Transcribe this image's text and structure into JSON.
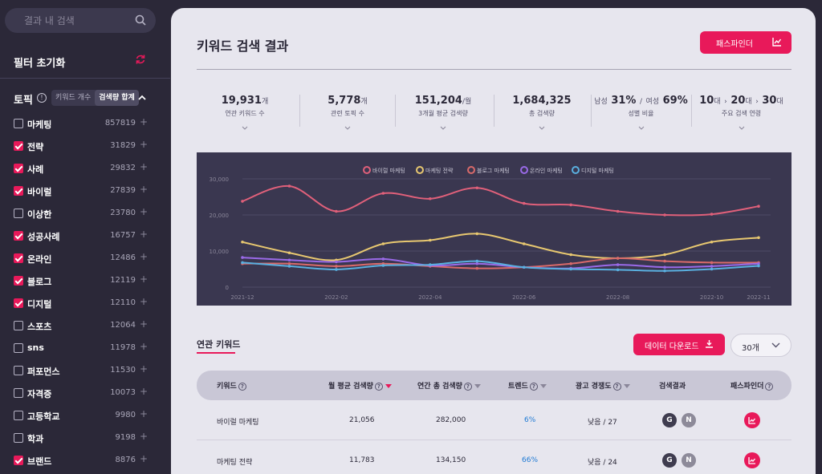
{
  "search": {
    "placeholder": "결과 내 검색"
  },
  "sidebar": {
    "filter_reset": "필터 초기화",
    "topic_label": "토픽",
    "segment": [
      "키워드 개수",
      "검색량 합계"
    ],
    "topics": [
      {
        "name": "마케팅",
        "count": "857819",
        "checked": false
      },
      {
        "name": "전략",
        "count": "31829",
        "checked": true
      },
      {
        "name": "사례",
        "count": "29832",
        "checked": true
      },
      {
        "name": "바이럴",
        "count": "27839",
        "checked": true
      },
      {
        "name": "이상한",
        "count": "23780",
        "checked": false
      },
      {
        "name": "성공사례",
        "count": "16757",
        "checked": true
      },
      {
        "name": "온라인",
        "count": "12486",
        "checked": true
      },
      {
        "name": "블로그",
        "count": "12119",
        "checked": true
      },
      {
        "name": "디지털",
        "count": "12110",
        "checked": true
      },
      {
        "name": "스포츠",
        "count": "12064",
        "checked": false
      },
      {
        "name": "sns",
        "count": "11978",
        "checked": false
      },
      {
        "name": "퍼포먼스",
        "count": "11530",
        "checked": false
      },
      {
        "name": "자격증",
        "count": "10073",
        "checked": false
      },
      {
        "name": "고등학교",
        "count": "9980",
        "checked": false
      },
      {
        "name": "학과",
        "count": "9198",
        "checked": false
      },
      {
        "name": "브랜드",
        "count": "8876",
        "checked": true
      }
    ]
  },
  "header": {
    "title": "키워드 검색 결과",
    "pathfinder_label": "패스파인더"
  },
  "stats": {
    "s1": {
      "value": "19,931",
      "unit": "개",
      "label": "연관 키워드 수"
    },
    "s2": {
      "value": "5,778",
      "unit": "개",
      "label": "관련 토픽 수"
    },
    "s3": {
      "value": "151,204",
      "unit": "/월",
      "label": "3개월 평균 검색량"
    },
    "s4": {
      "value": "1,684,325",
      "label": "총 검색량"
    },
    "gender": {
      "male_label": "남성",
      "male": "31%",
      "sep": "/",
      "female_label": "여성",
      "female": "69%",
      "label": "성별 비율"
    },
    "age": {
      "a1": "10",
      "a2": "20",
      "a3": "30",
      "unit": "대",
      "label": "주요 검색 연령"
    }
  },
  "chart_data": {
    "type": "line",
    "x": [
      "2021-12",
      "2022-01",
      "2022-02",
      "2022-03",
      "2022-04",
      "2022-05",
      "2022-06",
      "2022-07",
      "2022-08",
      "2022-09",
      "2022-10",
      "2022-11"
    ],
    "xticks": [
      "2021-12",
      "2022-02",
      "2022-04",
      "2022-06",
      "2022-08",
      "2022-10",
      "2022-11"
    ],
    "yticks": [
      "0",
      "10,000",
      "20,000",
      "30,000"
    ],
    "ylim": [
      0,
      30000
    ],
    "legend_position": "top-center",
    "series": [
      {
        "name": "바이럴 마케팅",
        "color": "#e0607a",
        "values": [
          23800,
          28000,
          21000,
          26000,
          24500,
          27500,
          23200,
          22800,
          21000,
          20000,
          20200,
          22400
        ]
      },
      {
        "name": "마케팅 전략",
        "color": "#e8c870",
        "values": [
          12500,
          9500,
          7500,
          12000,
          13000,
          14800,
          12000,
          9000,
          8000,
          9000,
          12500,
          13700
        ]
      },
      {
        "name": "블로그 마케팅",
        "color": "#d96a6a",
        "values": [
          6500,
          6500,
          5800,
          6500,
          5800,
          5200,
          5500,
          6500,
          8000,
          7200,
          6800,
          6800
        ]
      },
      {
        "name": "온라인 마케팅",
        "color": "#9a6ae8",
        "values": [
          8200,
          7500,
          7000,
          7800,
          6000,
          6500,
          5500,
          5200,
          6200,
          5500,
          5800,
          6500
        ]
      },
      {
        "name": "디지털 마케팅",
        "color": "#5ab0e0",
        "values": [
          6800,
          5800,
          4900,
          6000,
          6200,
          7200,
          5500,
          5000,
          4800,
          4500,
          5000,
          5900
        ]
      }
    ]
  },
  "tabs": {
    "related": "연관 키워드"
  },
  "download_label": "데이터 다운로드",
  "select": {
    "value": "30개"
  },
  "table": {
    "headers": {
      "keyword": "키워드",
      "monthly": "월 평균 검색량",
      "yearly": "연간 총 검색량",
      "trend": "트렌드",
      "comp": "광고 경쟁도",
      "result": "검색결과",
      "pf": "패스파인더"
    },
    "rows": [
      {
        "keyword": "바이럴 마케팅",
        "monthly": "21,056",
        "yearly": "282,000",
        "trend": "6%",
        "comp": "낮음 / 27",
        "g": "G",
        "n": "N"
      },
      {
        "keyword": "마케팅 전략",
        "monthly": "11,783",
        "yearly": "134,150",
        "trend": "66%",
        "comp": "낮음 / 24",
        "g": "G",
        "n": "N"
      }
    ]
  },
  "icons": [
    "search-icon",
    "refresh-icon",
    "info-icon",
    "chevron-up-icon",
    "plus-icon",
    "chart-icon",
    "download-icon",
    "chevron-down-icon",
    "sort-icon"
  ]
}
